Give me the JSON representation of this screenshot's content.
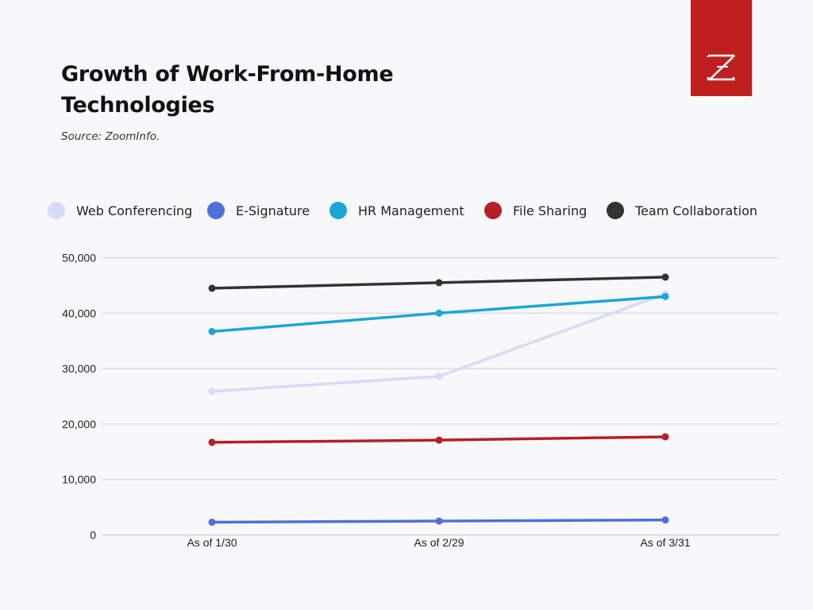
{
  "header": {
    "title": "Growth of Work-From-Home Technologies",
    "source": "Source: ZoomInfo."
  },
  "logo": {
    "icon": "zoominfo-z-logo-icon",
    "color": "#bf1f1f"
  },
  "chart_data": {
    "type": "line",
    "title": "Growth of Work-From-Home Technologies",
    "subtitle": "Source: ZoomInfo.",
    "xlabel": "",
    "ylabel": "",
    "categories": [
      "As of 1/30",
      "As of 2/29",
      "As of 3/31"
    ],
    "ylim": [
      0,
      50000
    ],
    "yticks": [
      0,
      10000,
      20000,
      30000,
      40000,
      50000
    ],
    "ytick_labels": [
      "0",
      "10,000",
      "20,000",
      "30,000",
      "40,000",
      "50,000"
    ],
    "grid": true,
    "legend_position": "top",
    "series": [
      {
        "name": "Web Conferencing",
        "color": "#d4dcf7",
        "values": [
          25900,
          28600,
          43500
        ]
      },
      {
        "name": "E-Signature",
        "color": "#4f6fd9",
        "values": [
          2300,
          2500,
          2700
        ]
      },
      {
        "name": "HR Management",
        "color": "#1aa7d8",
        "values": [
          36700,
          40000,
          43000
        ]
      },
      {
        "name": "File Sharing",
        "color": "#b61f25",
        "values": [
          16700,
          17100,
          17700
        ]
      },
      {
        "name": "Team Collaboration",
        "color": "#333333",
        "values": [
          44500,
          45500,
          46500
        ]
      }
    ]
  }
}
